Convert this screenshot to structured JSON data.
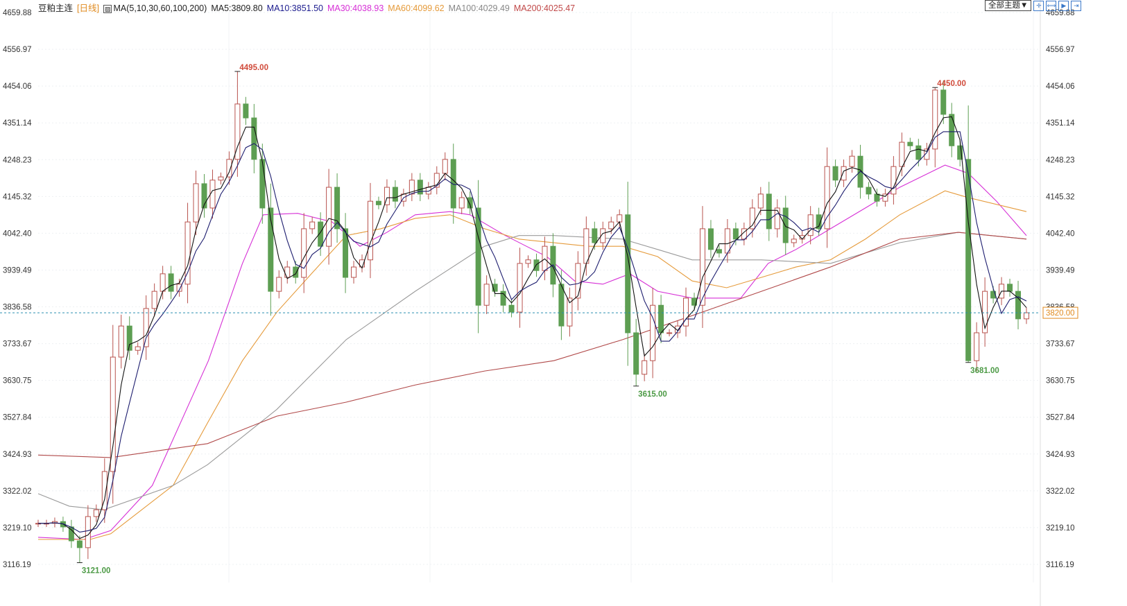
{
  "header": {
    "symbol": "豆粕主连",
    "period": "[日线]",
    "ma_params": "MA(5,10,30,60,100,200)",
    "ma5": "MA5:3809.80",
    "ma10": "MA10:3851.50",
    "ma30": "MA30:4038.93",
    "ma60": "MA60:4099.62",
    "ma100": "MA100:4029.49",
    "ma200": "MA200:4025.47"
  },
  "toolbar": {
    "theme_label": "全部主题▼",
    "icons": [
      "crosshair-icon",
      "zoom-range-icon",
      "step-forward-icon",
      "jump-end-icon"
    ]
  },
  "colors": {
    "up": "#b8524d",
    "down": "#5d9e52",
    "ma5": "#111111",
    "ma10": "#1c1c6e",
    "ma30": "#d62fd6",
    "ma60": "#e59a3a",
    "ma100": "#9a9a9a",
    "ma200": "#b04848",
    "last_line": "#2a8fb0",
    "last_badge": "#e08a1e"
  },
  "chart_data": {
    "type": "candlestick",
    "title": "豆粕主连 [日线]",
    "ylim": [
      3116.19,
      4659.88
    ],
    "y_ticks": [
      "4659.88",
      "4556.97",
      "4454.06",
      "4351.14",
      "4248.23",
      "4145.32",
      "4042.40",
      "3939.49",
      "3836.58",
      "3733.67",
      "3630.75",
      "3527.84",
      "3424.93",
      "3322.02",
      "3219.10",
      "3116.19"
    ],
    "grid": true,
    "closes": [
      3231,
      3231,
      3236,
      3221,
      3182,
      3163,
      3250,
      3269,
      3376,
      3696,
      3783,
      3715,
      3725,
      3832,
      3880,
      3929,
      3880,
      3900,
      4074,
      4181,
      4113,
      4191,
      4200,
      4249,
      4404,
      4365,
      4249,
      4113,
      3880,
      3919,
      3948,
      3919,
      4055,
      4074,
      4006,
      4171,
      4055,
      3919,
      3948,
      3968,
      4132,
      4122,
      4171,
      4132,
      4152,
      4191,
      4152,
      4171,
      4210,
      4249,
      4113,
      4142,
      4113,
      3841,
      3900,
      3880,
      3841,
      3822,
      3958,
      3968,
      3938,
      4006,
      3900,
      3783,
      3861,
      3958,
      4055,
      4016,
      4055,
      4074,
      4094,
      3764,
      3648,
      3686,
      3841,
      3764,
      3764,
      3783,
      3861,
      3841,
      4055,
      3997,
      3987,
      4055,
      4026,
      4055,
      4113,
      4152,
      4055,
      4113,
      4016,
      4026,
      4036,
      4094,
      4055,
      4229,
      4191,
      4229,
      4258,
      4171,
      4152,
      4132,
      4152,
      4229,
      4297,
      4287,
      4249,
      4278,
      4443,
      4375,
      4287,
      4249,
      3686,
      3764,
      3880,
      3861,
      3900,
      3880,
      3803,
      3820
    ],
    "moving_averages": [
      {
        "name": "MA30",
        "points": [
          [
            0,
            3192
          ],
          [
            5.5,
            3186
          ],
          [
            8.75,
            3211
          ],
          [
            13.75,
            3337
          ],
          [
            20.5,
            3686
          ],
          [
            24.6,
            3958
          ],
          [
            27.1,
            4094
          ],
          [
            31.25,
            4098
          ],
          [
            35.4,
            4074
          ],
          [
            38.75,
            4006
          ],
          [
            42,
            4045
          ],
          [
            45.4,
            4094
          ],
          [
            49.6,
            4103
          ],
          [
            52,
            4094
          ],
          [
            56.25,
            4036
          ],
          [
            61.25,
            3977
          ],
          [
            64.6,
            3909
          ],
          [
            68,
            3900
          ],
          [
            71.25,
            3929
          ],
          [
            74.6,
            3880
          ],
          [
            78.75,
            3861
          ],
          [
            84.6,
            3861
          ],
          [
            87.9,
            3958
          ],
          [
            91.25,
            3997
          ],
          [
            95.4,
            4055
          ],
          [
            99.6,
            4113
          ],
          [
            103.75,
            4171
          ],
          [
            109.2,
            4233
          ],
          [
            112,
            4210
          ],
          [
            115.4,
            4132
          ],
          [
            119,
            4036
          ]
        ]
      },
      {
        "name": "MA60",
        "points": [
          [
            0,
            3186
          ],
          [
            6.25,
            3186
          ],
          [
            8.75,
            3202
          ],
          [
            16.25,
            3337
          ],
          [
            20.4,
            3512
          ],
          [
            24.6,
            3686
          ],
          [
            28.75,
            3822
          ],
          [
            32.9,
            3929
          ],
          [
            37.1,
            4036
          ],
          [
            41.25,
            4055
          ],
          [
            45.4,
            4084
          ],
          [
            49.6,
            4094
          ],
          [
            53.75,
            4055
          ],
          [
            57.9,
            4026
          ],
          [
            66.25,
            4006
          ],
          [
            70.4,
            4006
          ],
          [
            74.6,
            3977
          ],
          [
            78.75,
            3909
          ],
          [
            82.9,
            3890
          ],
          [
            87.1,
            3919
          ],
          [
            91.25,
            3948
          ],
          [
            95.4,
            3968
          ],
          [
            99.6,
            4026
          ],
          [
            103.75,
            4094
          ],
          [
            109.2,
            4161
          ],
          [
            112,
            4142
          ],
          [
            119,
            4103
          ]
        ]
      },
      {
        "name": "MA100",
        "points": [
          [
            0,
            3314
          ],
          [
            3.75,
            3279
          ],
          [
            7.9,
            3269
          ],
          [
            16.25,
            3337
          ],
          [
            20.4,
            3395
          ],
          [
            28.75,
            3550
          ],
          [
            37.1,
            3745
          ],
          [
            45.4,
            3880
          ],
          [
            53.75,
            4006
          ],
          [
            57.9,
            4036
          ],
          [
            62.1,
            4036
          ],
          [
            70.4,
            4026
          ],
          [
            74.6,
            3997
          ],
          [
            78.75,
            3968
          ],
          [
            87.1,
            3968
          ],
          [
            95.4,
            3958
          ],
          [
            103.75,
            4016
          ],
          [
            110.8,
            4045
          ],
          [
            119,
            4026
          ]
        ]
      },
      {
        "name": "MA200",
        "points": [
          [
            0,
            3422
          ],
          [
            8.75,
            3415
          ],
          [
            20.4,
            3454
          ],
          [
            28.75,
            3531
          ],
          [
            37.1,
            3570
          ],
          [
            45.4,
            3618
          ],
          [
            53.75,
            3657
          ],
          [
            62.1,
            3686
          ],
          [
            70.4,
            3745
          ],
          [
            78.75,
            3812
          ],
          [
            87.1,
            3880
          ],
          [
            95.4,
            3948
          ],
          [
            103.75,
            4026
          ],
          [
            110.8,
            4045
          ],
          [
            119,
            4026
          ]
        ]
      }
    ],
    "annotations": [
      {
        "label": "4495.00",
        "index": 24,
        "price": 4495.0,
        "kind": "high"
      },
      {
        "label": "4450.00",
        "index": 108,
        "price": 4450.0,
        "kind": "high"
      },
      {
        "label": "3615.00",
        "index": 72,
        "price": 3615.0,
        "kind": "low"
      },
      {
        "label": "3681.00",
        "index": 112,
        "price": 3681.0,
        "kind": "low"
      },
      {
        "label": "3121.00",
        "index": 5,
        "price": 3121.0,
        "kind": "low"
      }
    ],
    "last_price": "3820.00"
  }
}
